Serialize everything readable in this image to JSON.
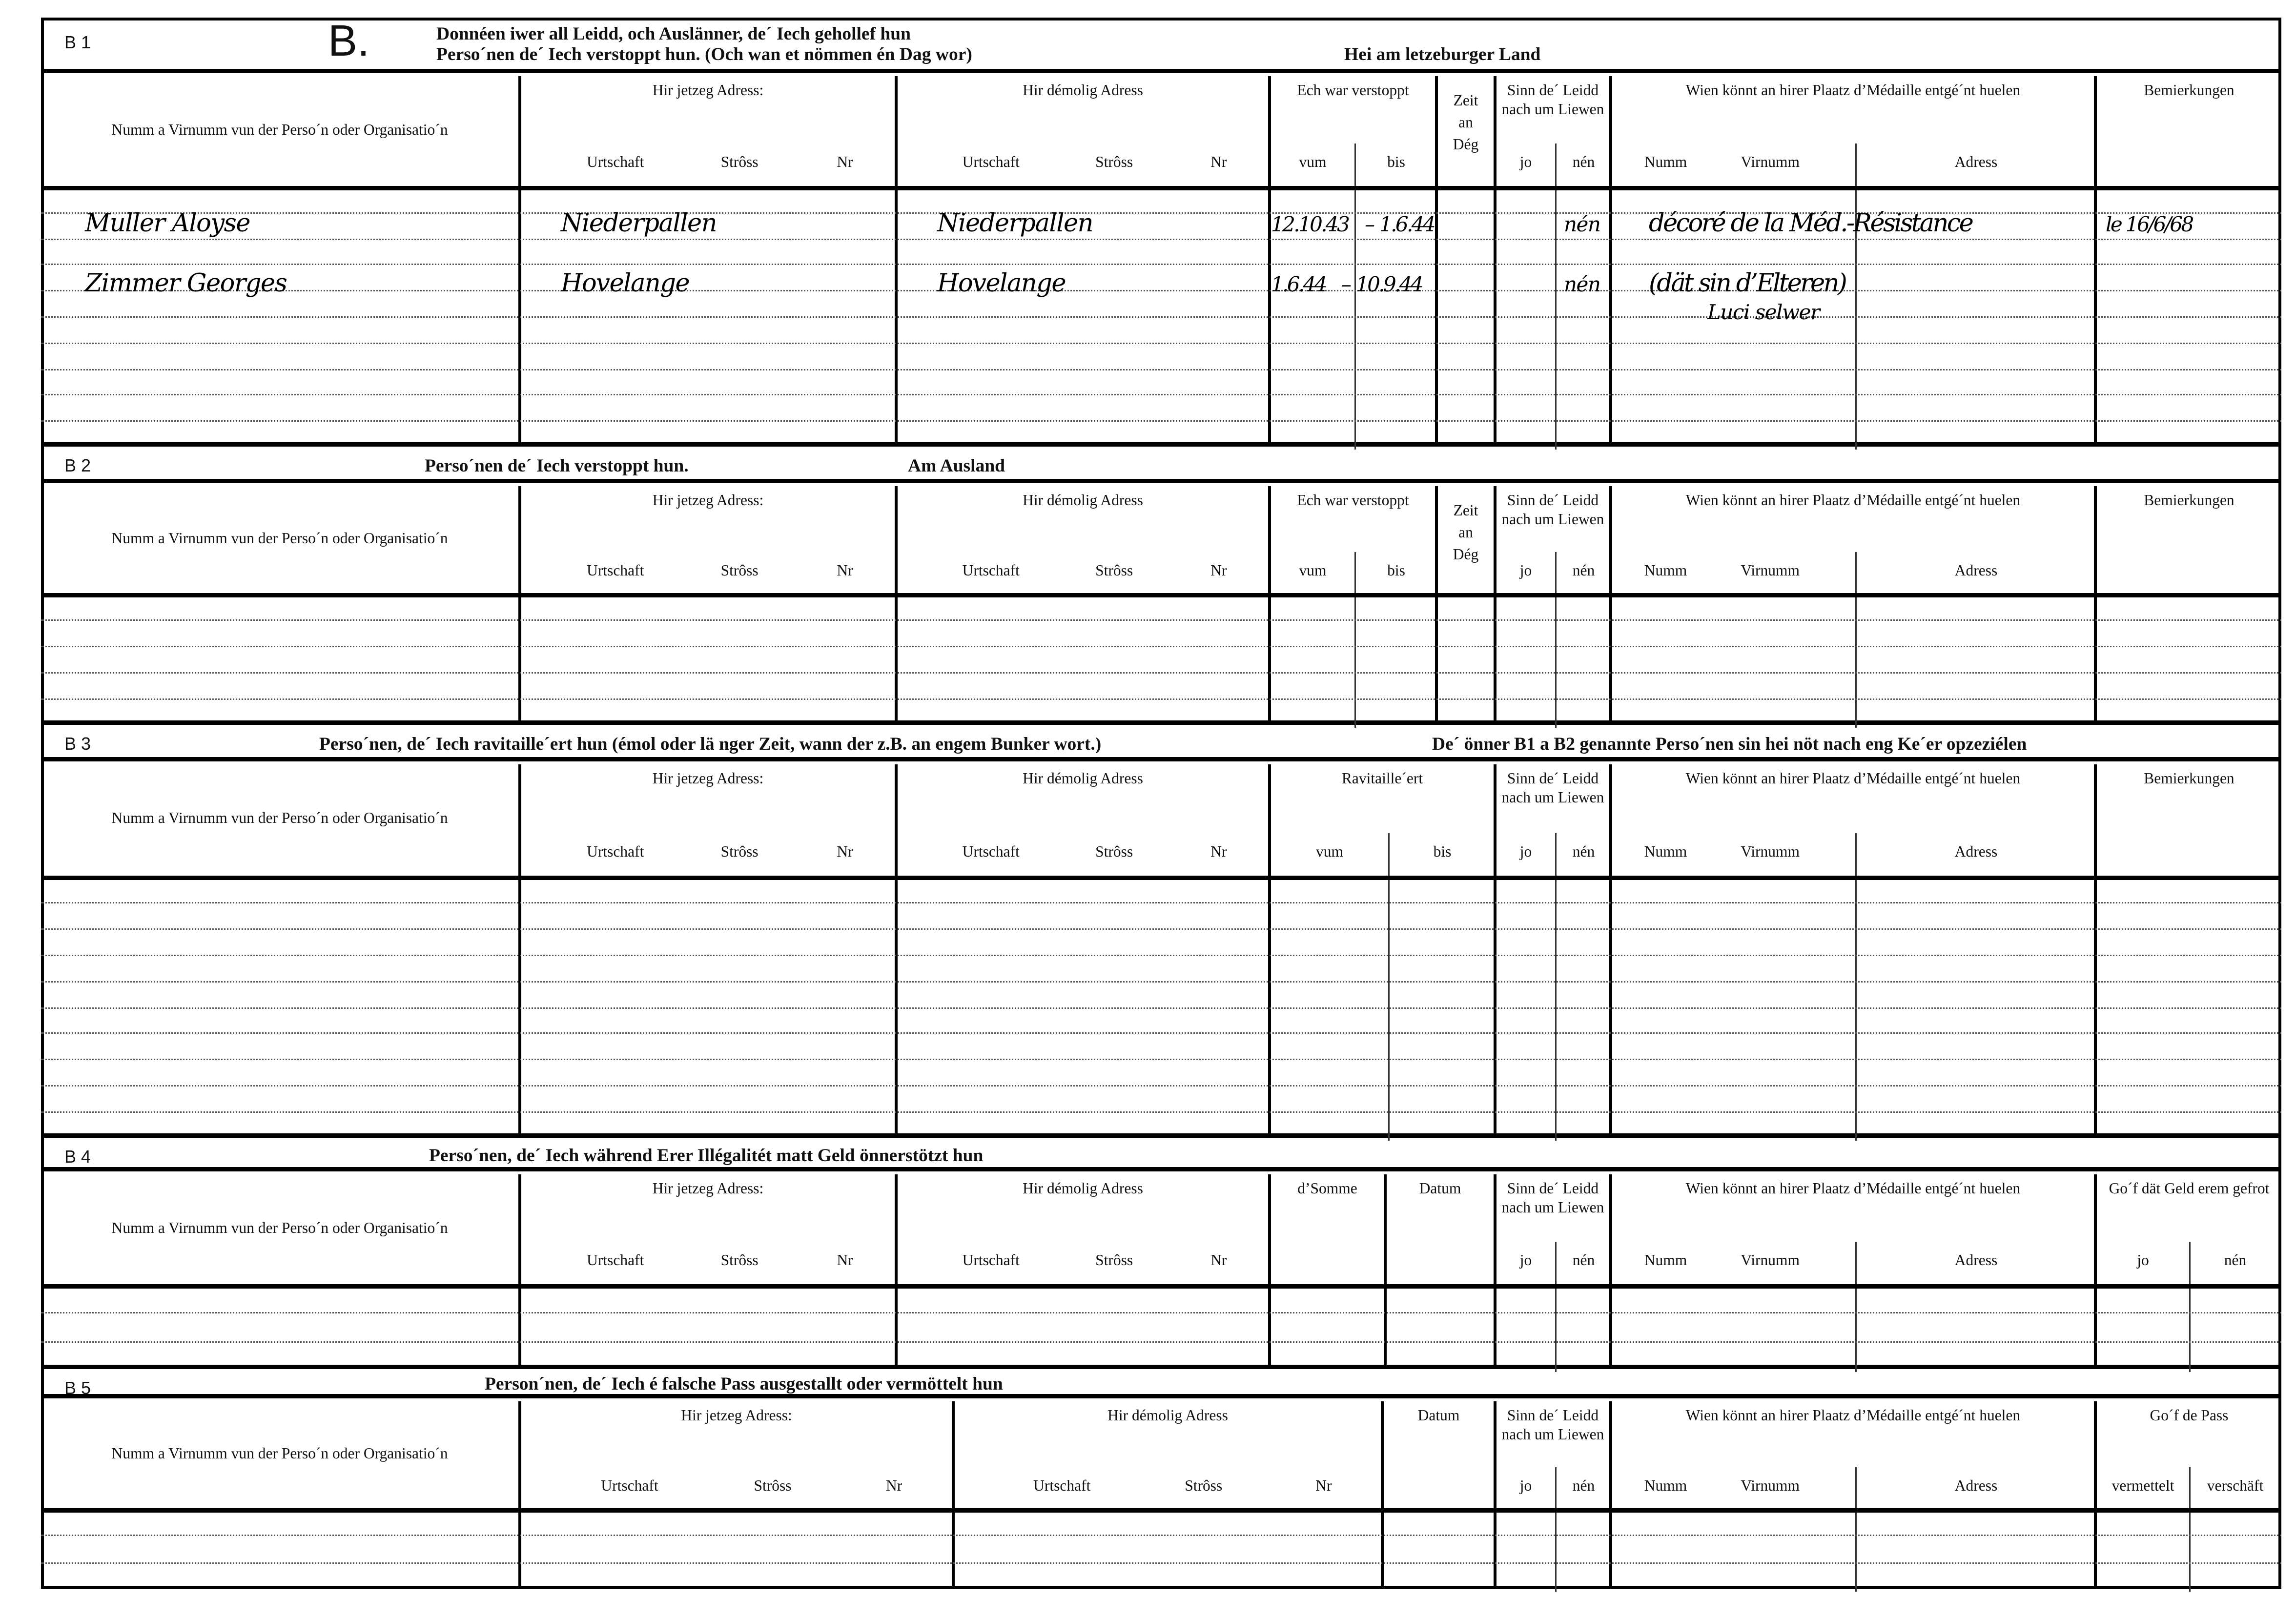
{
  "form_letter": "B.",
  "sections": [
    {
      "label": "B 1",
      "title_lines": [
        "Donnéen iwer all Leidd, och Auslänner, de´ Iech gehollef hun",
        "Perso´nen de´ Iech verstoppt hun. (Och wan et nömmen én Dag wor)"
      ],
      "title_extra": "Hei am letzeburger Land",
      "groups": [
        {
          "label": "Numm a Virnumm vun der Perso´n oder Organisatio´n",
          "subs": []
        },
        {
          "label": "Hir jetzeg Adress:",
          "subs": [
            "Urtschaft",
            "Strôss",
            "Nr"
          ]
        },
        {
          "label": "Hir démolig Adress",
          "subs": [
            "Urtschaft",
            "Strôss",
            "Nr"
          ]
        },
        {
          "label": "Ech war verstoppt",
          "subs": [
            "vum",
            "bis"
          ]
        },
        {
          "label": "Zeit an Dég",
          "subs": []
        },
        {
          "label": "Sinn de´ Leidd nach um Liewen",
          "subs": [
            "jo",
            "nén"
          ]
        },
        {
          "label": "Wien könnt an hirer Plaatz d’Médaille entgé´nt huelen",
          "subs": [
            "Numm",
            "Virnumm",
            "Adress"
          ]
        },
        {
          "label": "Bemierkungen",
          "subs": []
        }
      ],
      "entries": [
        {
          "name": "Muller Aloyse",
          "current_place": "Niederpallen",
          "former_place": "Niederpallen",
          "hidden_from": "12.10.43",
          "hidden_to": "1.6.44",
          "alive": "nén",
          "medal_note": "décoré de la Méd.-Résistance",
          "medal_note_2": "",
          "remarks": "le 16/6/68"
        },
        {
          "name": "Zimmer Georges",
          "current_place": "Hovelange",
          "former_place": "Hovelange",
          "hidden_from": "1.6.44",
          "hidden_to": "10.9.44",
          "alive": "nén",
          "medal_note": "(dät sin d’Elteren)",
          "medal_note_2": "Luci selwer",
          "remarks": ""
        }
      ]
    },
    {
      "label": "B 2",
      "title_lines": [
        "Perso´nen de´ Iech verstoppt hun."
      ],
      "title_extra": "Am Ausland",
      "groups": [
        {
          "label": "Numm a Virnumm vun der Perso´n oder Organisatio´n",
          "subs": []
        },
        {
          "label": "Hir jetzeg Adress:",
          "subs": [
            "Urtschaft",
            "Strôss",
            "Nr"
          ]
        },
        {
          "label": "Hir démolig Adress",
          "subs": [
            "Urtschaft",
            "Strôss",
            "Nr"
          ]
        },
        {
          "label": "Ech war verstoppt",
          "subs": [
            "vum",
            "bis"
          ]
        },
        {
          "label": "Zeit an Dég",
          "subs": []
        },
        {
          "label": "Sinn de´ Leidd nach um Liewen",
          "subs": [
            "jo",
            "nén"
          ]
        },
        {
          "label": "Wien könnt an hirer Plaatz d’Médaille entgé´nt huelen",
          "subs": [
            "Numm",
            "Virnumm",
            "Adress"
          ]
        },
        {
          "label": "Bemierkungen",
          "subs": []
        }
      ],
      "entries": []
    },
    {
      "label": "B 3",
      "title_lines": [
        "Perso´nen, de´ Iech ravitaille´ert hun (émol oder lä nger Zeit, wann der z.B. an engem Bunker wort.)"
      ],
      "title_extra": "De´ önner B1 a B2 genannte Perso´nen sin hei nöt nach eng Ke´er opzeziélen",
      "groups": [
        {
          "label": "Numm a Virnumm vun der Perso´n oder Organisatio´n",
          "subs": []
        },
        {
          "label": "Hir jetzeg Adress:",
          "subs": [
            "Urtschaft",
            "Strôss",
            "Nr"
          ]
        },
        {
          "label": "Hir démolig Adress",
          "subs": [
            "Urtschaft",
            "Strôss",
            "Nr"
          ]
        },
        {
          "label": "Ravitaille´ert",
          "subs": [
            "vum",
            "bis"
          ]
        },
        {
          "label": "Sinn de´ Leidd nach um Liewen",
          "subs": [
            "jo",
            "nén"
          ]
        },
        {
          "label": "Wien könnt an hirer Plaatz d’Médaille entgé´nt huelen",
          "subs": [
            "Numm",
            "Virnumm",
            "Adress"
          ]
        },
        {
          "label": "Bemierkungen",
          "subs": []
        }
      ],
      "entries": []
    },
    {
      "label": "B 4",
      "title_lines": [
        "Perso´nen, de´ Iech während Erer Illégalitét matt Geld önnerstötzt hun"
      ],
      "title_extra": "",
      "groups": [
        {
          "label": "Numm a Virnumm vun der Perso´n oder Organisatio´n",
          "subs": []
        },
        {
          "label": "Hir jetzeg Adress:",
          "subs": [
            "Urtschaft",
            "Strôss",
            "Nr"
          ]
        },
        {
          "label": "Hir démolig Adress",
          "subs": [
            "Urtschaft",
            "Strôss",
            "Nr"
          ]
        },
        {
          "label": "d’Somme",
          "subs": []
        },
        {
          "label": "Datum",
          "subs": []
        },
        {
          "label": "Sinn de´ Leidd nach um Liewen",
          "subs": [
            "jo",
            "nén"
          ]
        },
        {
          "label": "Wien könnt an hirer Plaatz d’Médaille entgé´nt huelen",
          "subs": [
            "Numm",
            "Virnumm",
            "Adress"
          ]
        },
        {
          "label": "Go´f dät Geld erem gefrot",
          "subs": [
            "jo",
            "nén"
          ]
        }
      ],
      "entries": []
    },
    {
      "label": "B 5",
      "title_lines": [
        "Person´nen, de´ Iech é falsche Pass ausgestallt oder vermöttelt hun"
      ],
      "title_extra": "",
      "groups": [
        {
          "label": "Numm a Virnumm vun der Perso´n oder Organisatio´n",
          "subs": []
        },
        {
          "label": "Hir jetzeg Adress:",
          "subs": [
            "Urtschaft",
            "Strôss",
            "Nr"
          ]
        },
        {
          "label": "Hir démolig Adress",
          "subs": [
            "Urtschaft",
            "Strôss",
            "Nr"
          ]
        },
        {
          "label": "Datum",
          "subs": []
        },
        {
          "label": "Sinn de´ Leidd nach um Liewen",
          "subs": [
            "jo",
            "nén"
          ]
        },
        {
          "label": "Wien könnt an hirer Plaatz d’Médaille entgé´nt huelen",
          "subs": [
            "Numm",
            "Virnumm",
            "Adress"
          ]
        },
        {
          "label": "Go´f de Pass",
          "subs": [
            "vermettelt",
            "verschäft"
          ]
        }
      ],
      "entries": []
    }
  ]
}
